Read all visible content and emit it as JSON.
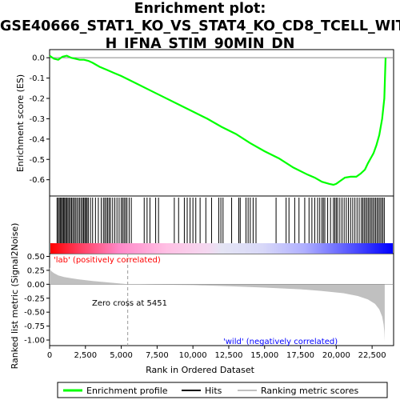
{
  "title": {
    "line1": "Enrichment plot:",
    "line2": "GSE40666_STAT1_KO_VS_STAT4_KO_CD8_TCELL_WIT",
    "line3": "H_IFNA_STIM_90MIN_DN"
  },
  "chart_data": {
    "type": "line",
    "xlabel": "Rank in Ordered Dataset",
    "x_ticks": [
      "0",
      "2,500",
      "5,000",
      "7,500",
      "10,000",
      "12,500",
      "15,000",
      "17,500",
      "20,000",
      "22,500"
    ],
    "x_tick_values": [
      0,
      2500,
      5000,
      7500,
      10000,
      12500,
      15000,
      17500,
      20000,
      22500
    ],
    "xlim": [
      0,
      24000
    ],
    "enrichment": {
      "ylabel": "Enrichment score (ES)",
      "ylim": [
        -0.68,
        0.04
      ],
      "y_ticks": [
        "0.0",
        "-0.1",
        "-0.2",
        "-0.3",
        "-0.4",
        "-0.5",
        "-0.6"
      ],
      "y_tick_values": [
        0.0,
        -0.1,
        -0.2,
        -0.3,
        -0.4,
        -0.5,
        -0.6
      ],
      "color": "#00ff00",
      "x": [
        0,
        300,
        600,
        900,
        1200,
        1500,
        1800,
        2100,
        2400,
        2700,
        3000,
        3500,
        4000,
        4500,
        5000,
        6000,
        7000,
        8000,
        9000,
        10000,
        11000,
        12000,
        13000,
        14000,
        15000,
        16000,
        17000,
        18000,
        18500,
        19000,
        19500,
        19800,
        20000,
        20300,
        20600,
        21000,
        21400,
        21700,
        22000,
        22200,
        22400,
        22600,
        22800,
        23000,
        23200,
        23350,
        23420,
        23440
      ],
      "y": [
        0.01,
        -0.005,
        -0.01,
        0.005,
        0.01,
        0.0,
        -0.005,
        -0.01,
        -0.01,
        -0.015,
        -0.025,
        -0.045,
        -0.06,
        -0.075,
        -0.09,
        -0.125,
        -0.16,
        -0.195,
        -0.23,
        -0.265,
        -0.3,
        -0.34,
        -0.375,
        -0.42,
        -0.46,
        -0.495,
        -0.54,
        -0.575,
        -0.59,
        -0.61,
        -0.62,
        -0.625,
        -0.62,
        -0.605,
        -0.59,
        -0.585,
        -0.585,
        -0.57,
        -0.55,
        -0.52,
        -0.495,
        -0.47,
        -0.43,
        -0.38,
        -0.3,
        -0.2,
        -0.05,
        0.0
      ]
    },
    "hits": {
      "label": "Hits",
      "ranks": [
        520,
        600,
        680,
        760,
        830,
        900,
        980,
        1050,
        1120,
        1200,
        1280,
        1360,
        1450,
        1530,
        1620,
        1710,
        1800,
        1900,
        2000,
        2100,
        2200,
        2300,
        2380,
        2460,
        2540,
        2620,
        2700,
        2850,
        3000,
        3200,
        3400,
        3600,
        3750,
        3850,
        3950,
        4050,
        4150,
        4250,
        4400,
        4550,
        4700,
        4850,
        5000,
        5100,
        5200,
        5300,
        5400,
        5550,
        5700,
        6600,
        6800,
        7000,
        7400,
        7600,
        8700,
        9000,
        9400,
        9600,
        9800,
        10000,
        10200,
        10500,
        10900,
        11300,
        11800,
        11950,
        12100,
        12700,
        13200,
        13300,
        13700,
        13850,
        14000,
        14200,
        14400,
        15800,
        16500,
        16700,
        17100,
        17400,
        17800,
        18100,
        18300,
        18500,
        18700,
        18850,
        19000,
        19100,
        19200,
        19400,
        19600,
        19800,
        19900,
        20000,
        20100,
        20250,
        20400,
        20550,
        20700,
        20850,
        21000,
        21150,
        21300,
        21450,
        21600,
        21750,
        21850,
        21950,
        22050,
        22150,
        22250,
        22350,
        22450,
        22550,
        22650,
        22750,
        22850,
        22950,
        23050,
        23150,
        23250,
        23350
      ]
    },
    "ranking_metric": {
      "label": "Ranking metric scores",
      "ylabel": "Ranked list metric (Signal2Noise)",
      "ylim": [
        -1.1,
        0.55
      ],
      "y_ticks": [
        "0.50",
        "0.25",
        "0.00",
        "-0.25",
        "-0.50",
        "-0.75",
        "-1.00"
      ],
      "y_tick_values": [
        0.5,
        0.25,
        0.0,
        -0.25,
        -0.5,
        -0.75,
        -1.0
      ],
      "x": [
        0,
        100,
        300,
        600,
        1000,
        1500,
        2000,
        3000,
        4000,
        5000,
        5451,
        7000,
        10000,
        12500,
        15000,
        17500,
        19000,
        20500,
        21500,
        22200,
        22700,
        23000,
        23200,
        23300,
        23350,
        23380
      ],
      "y": [
        0.3,
        0.24,
        0.2,
        0.16,
        0.13,
        0.11,
        0.09,
        0.06,
        0.035,
        0.012,
        0.0,
        -0.005,
        -0.015,
        -0.035,
        -0.06,
        -0.09,
        -0.12,
        -0.16,
        -0.21,
        -0.27,
        -0.35,
        -0.45,
        -0.58,
        -0.72,
        -0.85,
        -1.02
      ],
      "fill": "#c0c0c0",
      "zero_cross_rank": 5451,
      "zero_cross_label": "Zero cross at 5451",
      "pos_label": "'lab' (positively correlated)",
      "pos_color": "#ff0000",
      "neg_label": "'wild' (negatively correlated)",
      "neg_color": "#0000ff"
    },
    "legend": {
      "placement": "bottom",
      "entries": [
        "Enrichment profile",
        "Hits",
        "Ranking metric scores"
      ]
    }
  }
}
